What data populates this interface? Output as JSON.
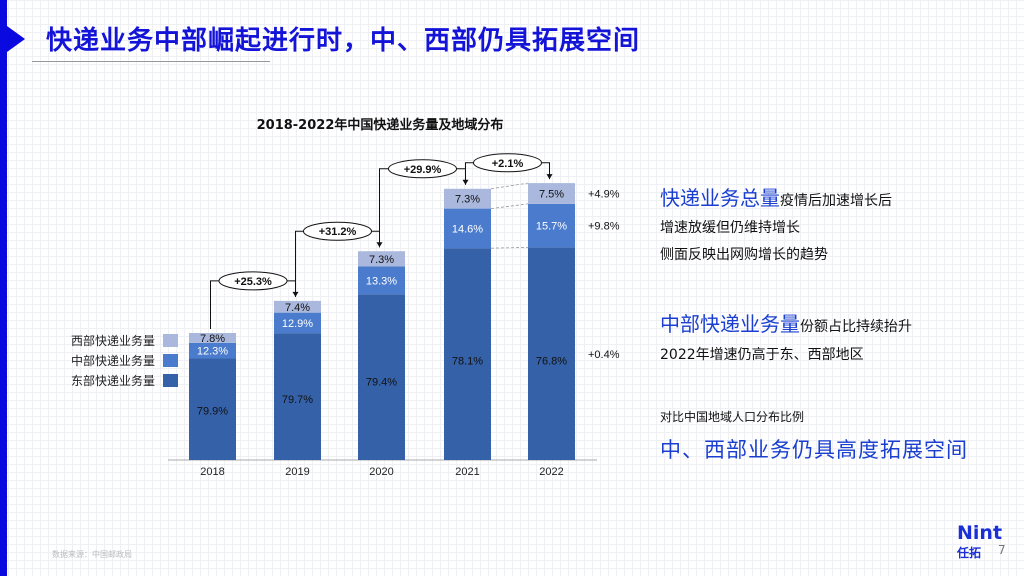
{
  "title": "快递业务中部崛起进行时，中、西部仍具拓展空间",
  "chart_data": {
    "type": "bar",
    "stacked": true,
    "title": "2018-2022年中国快递业务量及地域分布",
    "categories": [
      "2018",
      "2019",
      "2020",
      "2021",
      "2022"
    ],
    "series": [
      {
        "name": "东部快递业务量",
        "values": [
          79.9,
          79.7,
          79.4,
          78.1,
          76.8
        ],
        "color": "#3561a8"
      },
      {
        "name": "中部快递业务量",
        "values": [
          12.3,
          12.9,
          13.3,
          14.6,
          15.7
        ],
        "color": "#4a7bcd"
      },
      {
        "name": "西部快递业务量",
        "values": [
          7.8,
          7.4,
          7.3,
          7.3,
          7.5
        ],
        "color": "#a9b8dc"
      }
    ],
    "value_labels": [
      [
        "79.9%",
        "12.3%",
        "7.8%"
      ],
      [
        "79.7%",
        "12.9%",
        "7.4%"
      ],
      [
        "79.4%",
        "13.3%",
        "7.3%"
      ],
      [
        "78.1%",
        "14.6%",
        "7.3%"
      ],
      [
        "76.8%",
        "15.7%",
        "7.5%"
      ]
    ],
    "yoy_growth": [
      25.3,
      31.2,
      29.9,
      2.1
    ],
    "yoy_labels": [
      "+25.3%",
      "+31.2%",
      "+29.9%",
      "+2.1%"
    ],
    "region_growth_2022": [
      {
        "series": "西部快递业务量",
        "label": "+4.9%"
      },
      {
        "series": "中部快递业务量",
        "label": "+9.8%"
      },
      {
        "series": "东部快递业务量",
        "label": "+0.4%"
      }
    ],
    "legend_position": "left"
  },
  "text": {
    "p1_head": "快递业务总量",
    "p1_tail": "疫情后加速增长后",
    "p1_l2": "增速放缓但仍维持增长",
    "p1_l3": "侧面反映出网购增长的趋势",
    "p2_head": "中部快递业务量",
    "p2_tail": "份额占比持续抬升",
    "p2_l2": "2022年增速仍高于东、西部地区",
    "p3_l1": "对比中国地域人口分布比例",
    "p3_head": "中、西部业务仍具高度拓展空间"
  },
  "footer": {
    "source": "数据来源：中国邮政局",
    "page": "7"
  },
  "logo": {
    "en": "Nint",
    "cn": "任拓"
  }
}
